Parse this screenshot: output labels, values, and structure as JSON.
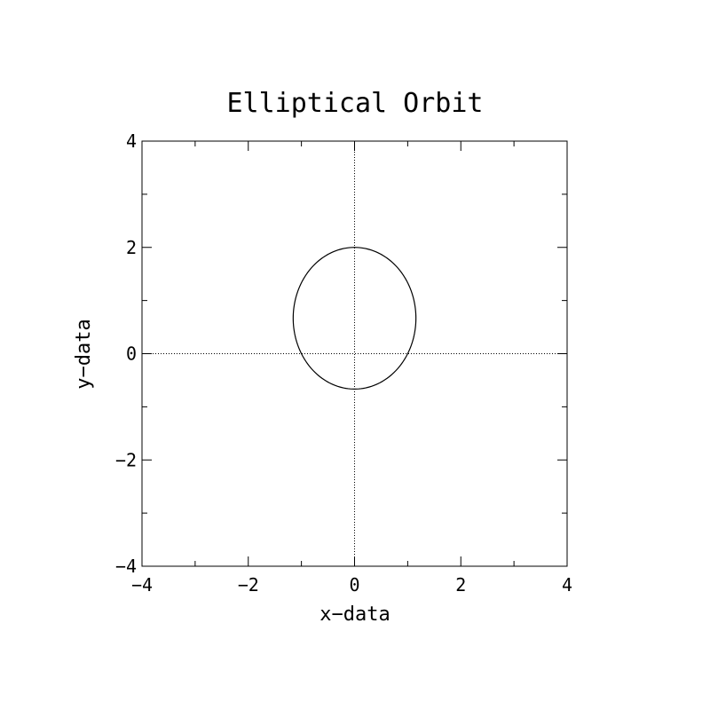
{
  "chart_data": {
    "type": "line",
    "title": "Elliptical Orbit",
    "xlabel": "x−data",
    "ylabel": "y−data",
    "xlim": [
      -4,
      4
    ],
    "ylim": [
      -4,
      4
    ],
    "xticks": [
      "−4",
      "−2",
      "0",
      "2",
      "4"
    ],
    "yticks": [
      "−4",
      "−2",
      "0",
      "2",
      "4"
    ],
    "zero_lines": true,
    "grid": false,
    "legend": "none",
    "series": [
      {
        "ellipse": {
          "center": [
            0,
            0.667
          ],
          "semi_x": 1.155,
          "semi_y": 1.333
        },
        "x": [
          0.0,
          0.299,
          0.577,
          0.817,
          1.0,
          1.115,
          1.155,
          1.115,
          1.0,
          0.817,
          0.577,
          0.299,
          0.0,
          -0.299,
          -0.577,
          -0.817,
          -1.0,
          -1.115,
          -1.155,
          -1.115,
          -1.0,
          -0.817,
          -0.577,
          -0.299,
          0.0
        ],
        "y": [
          2.0,
          1.955,
          1.821,
          1.61,
          1.333,
          1.012,
          0.667,
          0.322,
          0.0,
          -0.276,
          -0.488,
          -0.621,
          -0.667,
          -0.621,
          -0.488,
          -0.276,
          0.0,
          0.322,
          0.667,
          1.012,
          1.333,
          1.61,
          1.821,
          1.955,
          2.0
        ]
      }
    ]
  }
}
